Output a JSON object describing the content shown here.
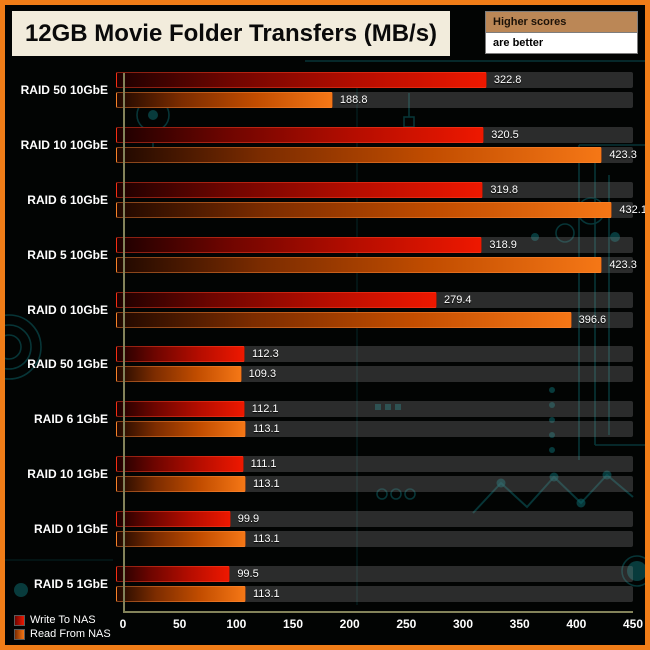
{
  "title": "12GB Movie Folder Transfers (MB/s)",
  "note": {
    "line1": "Higher scores",
    "line2": "are better"
  },
  "legend": [
    {
      "label": "Write To NAS",
      "color": "#ee1800"
    },
    {
      "label": "Read From NAS",
      "color": "#f57716"
    }
  ],
  "colors": {
    "frame_orange": "#f07d18",
    "write_red": "#ee1800",
    "read_orange": "#f57716",
    "track_gray": "#5a5a5a",
    "axis_olive": "#83835a",
    "circuit_teal": "#0d6063",
    "title_bg": "#f2ecdc",
    "note_tan": "#bb8756",
    "background": "#020403"
  },
  "chart_data": {
    "type": "bar",
    "orientation": "horizontal",
    "title": "12GB Movie Folder Transfers (MB/s)",
    "categories": [
      "RAID 50 10GbE",
      "RAID 10 10GbE",
      "RAID 6 10GbE",
      "RAID 5 10GbE",
      "RAID 0 10GbE",
      "RAID 50 1GbE",
      "RAID 6 1GbE",
      "RAID 10 1GbE",
      "RAID 0 1GbE",
      "RAID 5 1GbE"
    ],
    "series": [
      {
        "name": "Write To NAS",
        "values": [
          322.8,
          320.5,
          319.8,
          318.9,
          279.4,
          112.3,
          112.1,
          111.1,
          99.9,
          99.5
        ]
      },
      {
        "name": "Read From NAS",
        "values": [
          188.8,
          423.3,
          432.1,
          423.3,
          396.6,
          109.3,
          113.1,
          113.1,
          113.1,
          113.1
        ]
      }
    ],
    "xlabel": "",
    "ylabel": "",
    "xlim": [
      0,
      450
    ],
    "xticks": [
      0,
      50,
      100,
      150,
      200,
      250,
      300,
      350,
      400,
      450
    ],
    "grid": false,
    "legend_position": "bottom-left"
  }
}
